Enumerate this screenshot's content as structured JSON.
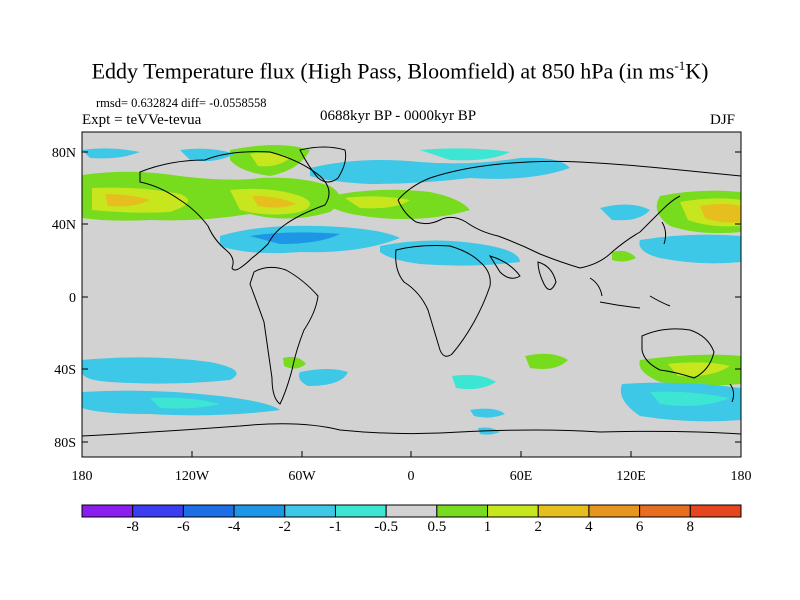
{
  "title": {
    "main": "Eddy Temperature flux (High Pass, Bloomfield) at 850 hPa (in ms",
    "sup": "-1",
    "end": "K)"
  },
  "stats": "rmsd= 0.632824 diff= -0.0558558",
  "expt": "Expt = teVVe-tevua",
  "period": "0688kyr BP - 0000kyr BP",
  "season": "DJF",
  "axes": {
    "y_ticks": [
      "80N",
      "40N",
      "0",
      "40S",
      "80S"
    ],
    "x_ticks": [
      "180",
      "120W",
      "60W",
      "0",
      "60E",
      "120E",
      "180"
    ]
  },
  "legend": {
    "labels": [
      "-8",
      "-6",
      "-4",
      "-2",
      "-1",
      "-0.5",
      "0.5",
      "1",
      "2",
      "4",
      "6",
      "8"
    ],
    "colors": [
      "#8a1ef0",
      "#3c3cf0",
      "#1e6ee6",
      "#1e96e6",
      "#3cc8e6",
      "#3ce6d2",
      "#d2d2d2",
      "#78dc1e",
      "#c8e61e",
      "#e6be1e",
      "#e6961e",
      "#e66e1e",
      "#e6461e"
    ]
  },
  "map": {
    "background_color": "#d2d2d2",
    "palette": {
      "cyan_light": "#3ce6d2",
      "cyan": "#3cc8e6",
      "blue_light": "#1e96e6",
      "green": "#78dc1e",
      "yellow_green": "#c8e61e",
      "orange": "#e6be1e"
    }
  }
}
